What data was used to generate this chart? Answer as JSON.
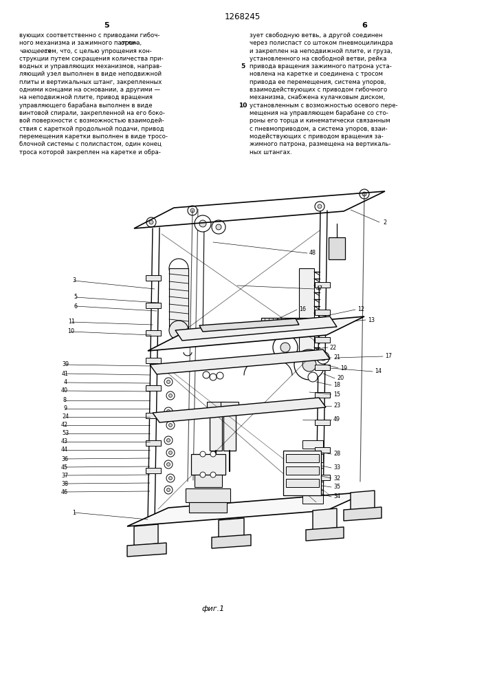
{
  "patent_number": "1268245",
  "col_left_num": "5",
  "col_right_num": "6",
  "fig_caption": "фиг.1",
  "bg_color": "#ffffff",
  "text_color": "#000000",
  "line_color": "#000000",
  "font_size_body": 6.2,
  "font_size_header": 8.5,
  "font_size_col": 8.0,
  "font_size_label": 5.8,
  "text_left_lines": [
    "вующих соответственно с приводами гибоч-",
    [
      "ного механизма и зажимного патрона, ",
      "отли-",
      "italic"
    ],
    [
      "чающееся",
      " тем, что, с целью упрощения кон-",
      "italic_start"
    ],
    "струкции путем сокращения количества при-",
    "водных и управляющих механизмов, направ-",
    "ляющий узел выполнен в виде неподвижной",
    "плиты и вертикальных штанг, закрепленных",
    "одними концами на основании, а другими —",
    "на неподвижной плите, привод вращения",
    "управляющего барабана выполнен в виде",
    "винтовой спирали, закрепленной на его боко-",
    "вой поверхности с возможностью взаимодей-",
    "ствия с кареткой продольной подачи, привод",
    "перемещения каретки выполнен в виде тросо-",
    "блочной системы с полиспастом, один конец",
    "троса которой закреплен на каретке и обра-"
  ],
  "text_right_lines": [
    "зует свободную ветвь, а другой соединен",
    "через полиспаст со штоком пневмоцилиндра",
    "и закреплен на неподвижной плите, и груза,",
    "установленного на свободной ветви, рейка",
    "привода вращения зажимного патрона уста-",
    "новлена на каретке и соединена с тросом",
    "привода ее перемещения, система упоров,",
    "взаимодействующих с приводом гибочного",
    "механизма, снабжена кулачковым диском,",
    "установленным с возможностью осевого пере-",
    "мещения на управляющем барабане со сто-",
    "роны его торца и кинематически связанным",
    "с пневмоприводом, а система упоров, взаи-",
    "модействующих с приводом вращения за-",
    "жимного патрона, размещена на вертикаль-",
    "ных штангах."
  ]
}
